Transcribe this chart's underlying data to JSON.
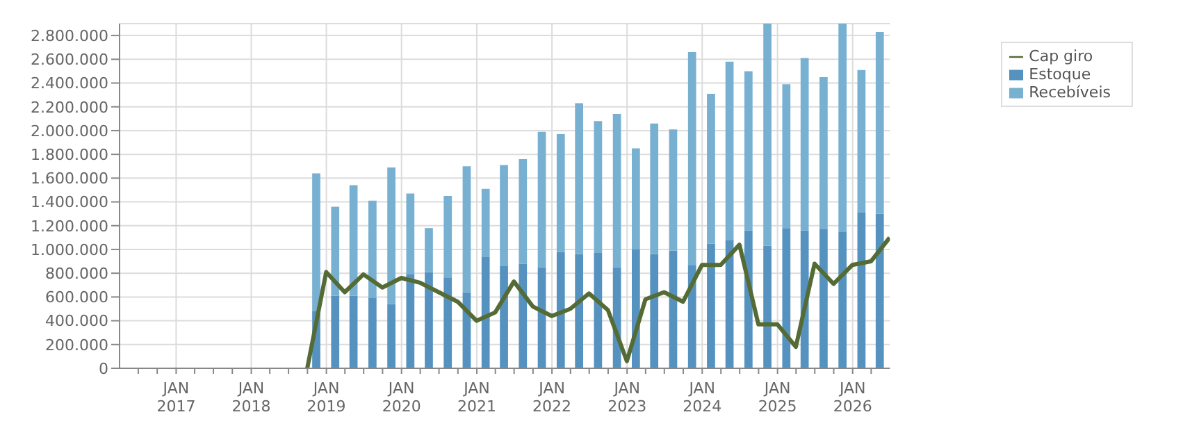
{
  "chart_data": {
    "type": "bar",
    "stacked": true,
    "x": [
      "2018-11-15",
      "2019-02-15",
      "2019-05-15",
      "2019-08-15",
      "2019-11-15",
      "2020-02-15",
      "2020-05-15",
      "2020-08-15",
      "2020-11-15",
      "2021-02-15",
      "2021-05-15",
      "2021-08-15",
      "2021-11-15",
      "2022-02-15",
      "2022-05-15",
      "2022-08-15",
      "2022-11-15",
      "2023-02-15",
      "2023-05-15",
      "2023-08-15",
      "2023-11-15",
      "2024-02-15",
      "2024-05-15",
      "2024-08-15",
      "2024-11-15",
      "2025-02-15",
      "2025-05-15",
      "2025-08-15",
      "2025-11-15",
      "2026-02-15",
      "2026-05-15"
    ],
    "series": [
      {
        "name": "Estoque",
        "color": "#5592bf",
        "values": [
          480000,
          610000,
          610000,
          590000,
          540000,
          790000,
          810000,
          760000,
          640000,
          940000,
          860000,
          880000,
          850000,
          980000,
          960000,
          970000,
          850000,
          1000000,
          960000,
          990000,
          870000,
          1050000,
          1080000,
          1160000,
          1030000,
          1180000,
          1160000,
          1170000,
          1150000,
          1310000,
          1300000
        ]
      },
      {
        "name": "Recebíveis",
        "color": "#78b0d2",
        "values": [
          1160000,
          750000,
          930000,
          820000,
          1150000,
          680000,
          370000,
          690000,
          1060000,
          570000,
          850000,
          880000,
          1140000,
          990000,
          1270000,
          1110000,
          1290000,
          850000,
          1100000,
          1020000,
          1790000,
          1260000,
          1500000,
          1340000,
          1870000,
          1210000,
          1450000,
          1280000,
          1750000,
          1200000,
          1530000
        ]
      },
      {
        "name": "Cap giro",
        "type": "line",
        "color": "#556b35",
        "marker": "none",
        "line_style": "solid",
        "x": [
          "2018-09-30",
          "2018-12-31",
          "2019-03-31",
          "2019-06-30",
          "2019-09-30",
          "2019-12-31",
          "2020-03-31",
          "2020-06-30",
          "2020-09-30",
          "2020-12-31",
          "2021-03-31",
          "2021-06-30",
          "2021-09-30",
          "2021-12-31",
          "2022-03-31",
          "2022-06-30",
          "2022-09-30",
          "2022-12-31",
          "2023-03-31",
          "2023-06-30",
          "2023-09-30",
          "2023-12-31",
          "2024-03-31",
          "2024-06-30",
          "2024-09-30",
          "2024-12-31",
          "2025-03-31",
          "2025-06-30",
          "2025-09-30",
          "2025-12-31",
          "2026-03-31",
          "2026-06-30"
        ],
        "values": [
          0,
          810000,
          640000,
          790000,
          680000,
          760000,
          720000,
          640000,
          560000,
          400000,
          470000,
          730000,
          520000,
          440000,
          500000,
          630000,
          490000,
          60000,
          580000,
          640000,
          560000,
          870000,
          870000,
          1040000,
          370000,
          370000,
          180000,
          880000,
          710000,
          870000,
          900000,
          1100000
        ]
      }
    ],
    "xlim": [
      "2016-04-01",
      "2026-07-01"
    ],
    "xticks": [
      {
        "value": "2016-07-01",
        "label": null
      },
      {
        "value": "2016-10-01",
        "label": null
      },
      {
        "value": "2017-01-01",
        "label": "JAN\n2017"
      },
      {
        "value": "2017-04-01",
        "label": null
      },
      {
        "value": "2017-07-01",
        "label": null
      },
      {
        "value": "2017-10-01",
        "label": null
      },
      {
        "value": "2018-01-01",
        "label": "JAN\n2018"
      },
      {
        "value": "2018-04-01",
        "label": null
      },
      {
        "value": "2018-07-01",
        "label": null
      },
      {
        "value": "2018-10-01",
        "label": null
      },
      {
        "value": "2019-01-01",
        "label": "JAN\n2019"
      },
      {
        "value": "2019-04-01",
        "label": null
      },
      {
        "value": "2019-07-01",
        "label": null
      },
      {
        "value": "2019-10-01",
        "label": null
      },
      {
        "value": "2020-01-01",
        "label": "JAN\n2020"
      },
      {
        "value": "2020-04-01",
        "label": null
      },
      {
        "value": "2020-07-01",
        "label": null
      },
      {
        "value": "2020-10-01",
        "label": null
      },
      {
        "value": "2021-01-01",
        "label": "JAN\n2021"
      },
      {
        "value": "2021-04-01",
        "label": null
      },
      {
        "value": "2021-07-01",
        "label": null
      },
      {
        "value": "2021-10-01",
        "label": null
      },
      {
        "value": "2022-01-01",
        "label": "JAN\n2022"
      },
      {
        "value": "2022-04-01",
        "label": null
      },
      {
        "value": "2022-07-01",
        "label": null
      },
      {
        "value": "2022-10-01",
        "label": null
      },
      {
        "value": "2023-01-01",
        "label": "JAN\n2023"
      },
      {
        "value": "2023-04-01",
        "label": null
      },
      {
        "value": "2023-07-01",
        "label": null
      },
      {
        "value": "2023-10-01",
        "label": null
      },
      {
        "value": "2024-01-01",
        "label": "JAN\n2024"
      },
      {
        "value": "2024-04-01",
        "label": null
      },
      {
        "value": "2024-07-01",
        "label": null
      },
      {
        "value": "2024-10-01",
        "label": null
      },
      {
        "value": "2025-01-01",
        "label": "JAN\n2025"
      },
      {
        "value": "2025-04-01",
        "label": null
      },
      {
        "value": "2025-07-01",
        "label": null
      },
      {
        "value": "2025-10-01",
        "label": null
      },
      {
        "value": "2026-01-01",
        "label": "JAN\n2026"
      },
      {
        "value": "2026-04-01",
        "label": null
      }
    ],
    "ylim": [
      0,
      2900000
    ],
    "yticks": [
      0,
      {
        "value": 200000,
        "label": "200.000"
      },
      {
        "value": 400000,
        "label": "400.000"
      },
      {
        "value": 600000,
        "label": "600.000"
      },
      {
        "value": 800000,
        "label": "800.000"
      },
      {
        "value": 1000000,
        "label": "1.000.000"
      },
      {
        "value": 1200000,
        "label": "1.200.000"
      },
      {
        "value": 1400000,
        "label": "1.400.000"
      },
      {
        "value": 1600000,
        "label": "1.600.000"
      },
      {
        "value": 1800000,
        "label": "1.800.000"
      },
      {
        "value": 2000000,
        "label": "2.000.000"
      },
      {
        "value": 2200000,
        "label": "2.200.000"
      },
      {
        "value": 2400000,
        "label": "2.400.000"
      },
      {
        "value": 2600000,
        "label": "2.600.000"
      },
      {
        "value": 2800000,
        "label": "2.800.000"
      }
    ],
    "grid": true,
    "legend": "top right"
  }
}
